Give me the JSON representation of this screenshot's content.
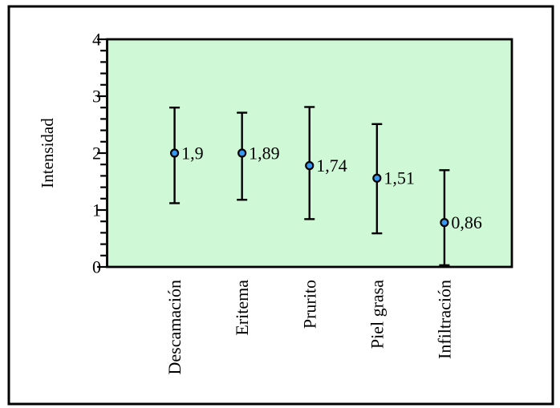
{
  "figure": {
    "background": "#ffffff",
    "outer_border_color": "#000000"
  },
  "chart_data": {
    "type": "scatter",
    "subtype": "point-with-error-bars",
    "title": "",
    "xlabel": "",
    "ylabel": "Intensidad",
    "ylim": [
      0,
      4
    ],
    "y_major_ticks": [
      0,
      1,
      2,
      3,
      4
    ],
    "y_minor_step": 0.2,
    "grid": false,
    "legend_position": "none",
    "plot_bg": "#cff9d6",
    "plot_border_color": "#000000",
    "marker_fill": "#3598f5",
    "marker_stroke": "#000000",
    "error_bar_color": "#000000",
    "decimal_separator": ",",
    "categories": [
      "Descamación",
      "Eritema",
      "Prurito",
      "Piel grasa",
      "Infiltración"
    ],
    "points": [
      {
        "category": "Descamación",
        "label": "1,9",
        "value": 1.9,
        "marker_value": 2.0,
        "whisker_low": 1.12,
        "whisker_high": 2.8
      },
      {
        "category": "Eritema",
        "label": "1,89",
        "value": 1.89,
        "marker_value": 2.0,
        "whisker_low": 1.18,
        "whisker_high": 2.71
      },
      {
        "category": "Prurito",
        "label": "1,74",
        "value": 1.74,
        "marker_value": 1.78,
        "whisker_low": 0.84,
        "whisker_high": 2.81
      },
      {
        "category": "Piel grasa",
        "label": "1,51",
        "value": 1.51,
        "marker_value": 1.56,
        "whisker_low": 0.59,
        "whisker_high": 2.51
      },
      {
        "category": "Infiltración",
        "label": "0,86",
        "value": 0.86,
        "marker_value": 0.78,
        "whisker_low": 0.03,
        "whisker_high": 1.7
      }
    ]
  }
}
